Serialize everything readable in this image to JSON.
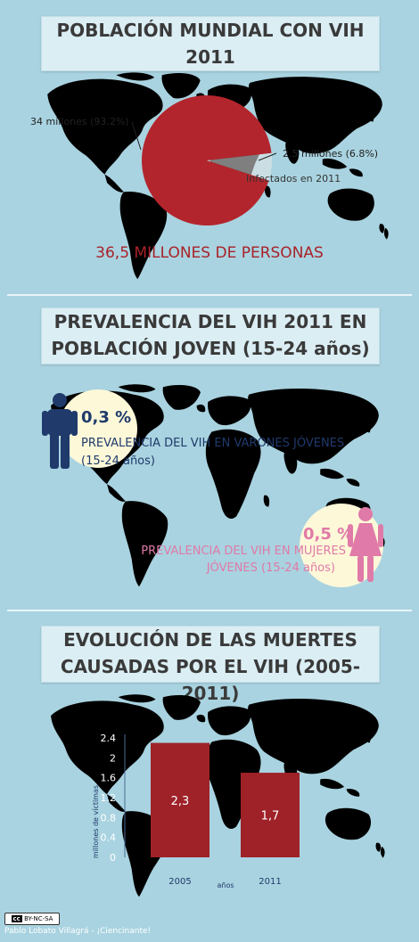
{
  "section1": {
    "title_line1": "POBLACIÓN MUNDIAL CON VIH",
    "title_line2": "2011",
    "pie_label_large": "34 millones (93.2%)",
    "pie_label_small": "2.5 millones (6.8%)",
    "pie_legend": "Infectados en 2011",
    "total": "36,5 MILLONES DE PERSONAS",
    "chart_data": {
      "type": "pie",
      "slices": [
        {
          "label": "34 millones (93.2%)",
          "value": 93.2
        },
        {
          "label": "2.5 millones (6.8%)",
          "value": 6.8
        }
      ],
      "legend": "Infectados en 2011"
    }
  },
  "section2": {
    "title_line1": "PREVALENCIA DEL VIH 2011 EN",
    "title_line2": "POBLACIÓN JOVEN (15-24 años)",
    "male_pct": "0,3 %",
    "male_desc_line1": "PREVALENCIA DEL VIH EN VARONES JÓVENES",
    "male_desc_line2": "(15-24 años)",
    "female_pct": "0,5 %",
    "female_desc_line1": "PREVALENCIA DEL VIH EN MUJERES",
    "female_desc_line2": "JÓVENES (15-24 años)"
  },
  "section3": {
    "title_line1": "EVOLUCIÓN DE LAS MUERTES",
    "title_line2": "CAUSADAS POR EL  VIH (2005-2011)",
    "chart_data": {
      "type": "bar",
      "categories": [
        "2005",
        "2011"
      ],
      "values": [
        2.3,
        1.7
      ],
      "value_labels": [
        "2,3",
        "1,7"
      ],
      "ylabel": "millones de víctimas",
      "xlabel": "años",
      "yticks": [
        "0",
        "0.4",
        "0.8",
        "1.2",
        "1.6",
        "2",
        "2.4"
      ],
      "ylim": [
        0,
        2.4
      ],
      "grid": false
    }
  },
  "footer": {
    "license": "BY-NC-SA",
    "credit": "Pablo Lobato Villagrá - ¡Ciencinante!"
  },
  "colors": {
    "background": "#a9d3e0",
    "title_box": "#dbeef4",
    "map": "#6b93c4",
    "pie_main": "#b3252c",
    "pie_small": "#e8e8e8",
    "total_text": "#a9222a",
    "male": "#1f3a6b",
    "female": "#e07aa8",
    "bar": "#9f2228",
    "bubble": "#fdf8d8"
  }
}
